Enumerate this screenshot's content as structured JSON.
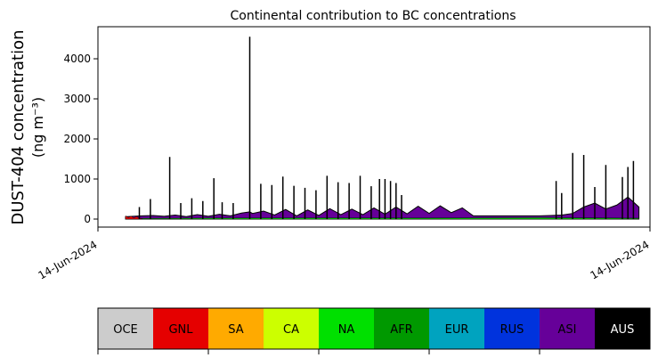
{
  "chart_data": {
    "type": "area",
    "title": "Continental contribution to BC concentrations",
    "ylabel_line1": "DUST-404 concentration",
    "ylabel_line2": "(ng m⁻³)",
    "xlabel": "",
    "ylim": [
      -200,
      4800
    ],
    "y_ticks": [
      0,
      1000,
      2000,
      3000,
      4000
    ],
    "y_tick_labels": [
      "0",
      "1000",
      "2000",
      "3000",
      "4000"
    ],
    "x_tick_labels": [
      "14-Jun-2024",
      "14-Jun-2024"
    ],
    "grid": false,
    "x_range": [
      0,
      100
    ],
    "series": [
      {
        "name": "ASI",
        "color": "#660099",
        "x": [
          5,
          8,
          10,
          12,
          14,
          16,
          18,
          20,
          22,
          24,
          26,
          27.5,
          28,
          30,
          32,
          34,
          36,
          38,
          40,
          42,
          44,
          46,
          48,
          50,
          52,
          54,
          56,
          58,
          60,
          62,
          64,
          66,
          68,
          70,
          72,
          74,
          76,
          78,
          80,
          82,
          84,
          86,
          88,
          90,
          92,
          94,
          96,
          98
        ],
        "y": [
          60,
          80,
          90,
          70,
          100,
          60,
          110,
          70,
          120,
          80,
          150,
          180,
          140,
          200,
          100,
          240,
          80,
          230,
          90,
          260,
          110,
          250,
          110,
          280,
          120,
          300,
          130,
          320,
          140,
          330,
          160,
          280,
          80,
          80,
          80,
          80,
          80,
          80,
          80,
          90,
          100,
          140,
          300,
          400,
          250,
          350,
          550,
          300
        ]
      },
      {
        "name": "RUS",
        "color": "#0033dd",
        "x": [
          5,
          50,
          70,
          90,
          98
        ],
        "y": [
          20,
          20,
          30,
          30,
          20
        ]
      },
      {
        "name": "NA",
        "color": "#00e000",
        "x": [
          5,
          20,
          40,
          60,
          80,
          98
        ],
        "y": [
          15,
          25,
          30,
          25,
          35,
          20
        ]
      },
      {
        "name": "GNL",
        "color": "#e50000",
        "x": [
          5,
          5.5,
          6,
          6.5,
          7,
          7.5,
          8
        ],
        "y": [
          80,
          40,
          70,
          30,
          60,
          20,
          10
        ]
      }
    ],
    "spikes": {
      "name": "AUS",
      "color": "#000000",
      "x": [
        7.5,
        9.5,
        13,
        15,
        17,
        19,
        21,
        22.5,
        24.5,
        27.5,
        29.5,
        31.5,
        33.5,
        35.5,
        37.5,
        39.5,
        41.5,
        43.5,
        45.5,
        47.5,
        49.5,
        51,
        52,
        53,
        54,
        55,
        83,
        84,
        86,
        88,
        90,
        92,
        95,
        96,
        97
      ],
      "y": [
        300,
        500,
        1550,
        400,
        520,
        450,
        1020,
        420,
        400,
        4550,
        880,
        850,
        1060,
        830,
        780,
        720,
        1080,
        920,
        900,
        1080,
        820,
        1000,
        1000,
        950,
        900,
        600,
        950,
        650,
        1650,
        1600,
        800,
        1350,
        1050,
        1300,
        1450
      ]
    }
  },
  "legend": {
    "regions": [
      {
        "label": "OCE",
        "color": "#cccccc",
        "text_color": "#000000"
      },
      {
        "label": "GNL",
        "color": "#e50000",
        "text_color": "#000000"
      },
      {
        "label": "SA",
        "color": "#ffaa00",
        "text_color": "#000000"
      },
      {
        "label": "CA",
        "color": "#ccff00",
        "text_color": "#000000"
      },
      {
        "label": "NA",
        "color": "#00e000",
        "text_color": "#000000"
      },
      {
        "label": "AFR",
        "color": "#009900",
        "text_color": "#000000"
      },
      {
        "label": "EUR",
        "color": "#00a3bf",
        "text_color": "#000000"
      },
      {
        "label": "RUS",
        "color": "#0033dd",
        "text_color": "#000000"
      },
      {
        "label": "ASI",
        "color": "#660099",
        "text_color": "#000000"
      },
      {
        "label": "AUS",
        "color": "#000000",
        "text_color": "#ffffff"
      }
    ]
  }
}
